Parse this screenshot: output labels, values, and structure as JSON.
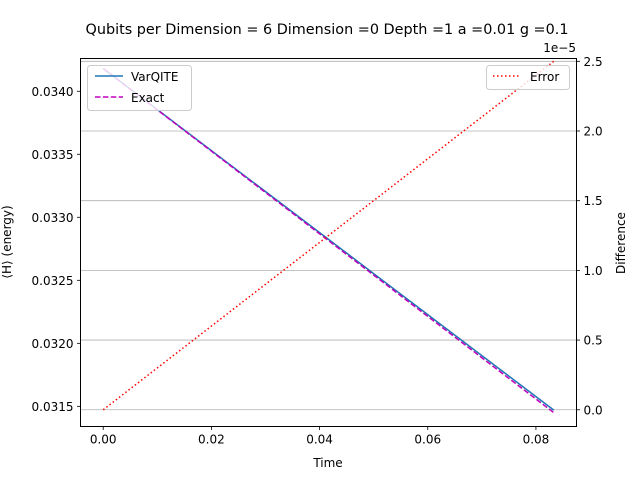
{
  "chart_data": {
    "type": "line",
    "title": "Qubits per Dimension = 6 Dimension =0 Depth =1 a =0.01 g =0.1",
    "xlabel": "Time",
    "ylabel_left": "⟨H⟩ (energy)",
    "ylabel_right": "Difference",
    "right_axis_offset_label": "1e−5",
    "xlim": [
      -0.0042,
      0.0875
    ],
    "ylim_left": [
      0.03134,
      0.03426
    ],
    "ylim_right": [
      -0.12,
      2.52
    ],
    "x_ticks": [
      0.0,
      0.02,
      0.04,
      0.06,
      0.08
    ],
    "x_tick_labels": [
      "0.00",
      "0.02",
      "0.04",
      "0.06",
      "0.08"
    ],
    "left_ticks": [
      0.0315,
      0.032,
      0.0325,
      0.033,
      0.0335,
      0.034
    ],
    "left_tick_labels": [
      "0.0315",
      "0.0320",
      "0.0325",
      "0.0330",
      "0.0335",
      "0.0340"
    ],
    "right_ticks": [
      0.0,
      0.5,
      1.0,
      1.5,
      2.0,
      2.5
    ],
    "right_tick_labels": [
      "0.0",
      "0.5",
      "1.0",
      "1.5",
      "2.0",
      "2.5"
    ],
    "grid": "horizontal lines at right-axis ticks",
    "legend_left_placement": "upper-left",
    "legend_right_placement": "upper-right",
    "series": [
      {
        "name": "VarQITE",
        "axis": "left",
        "color": "#1f77b4",
        "style": "solid",
        "x": [
          0.0,
          0.0833
        ],
        "y": [
          0.03418,
          0.03147
        ]
      },
      {
        "name": "Exact",
        "axis": "left",
        "color": "#bf00bf",
        "style": "dashed",
        "x": [
          0.0,
          0.0833
        ],
        "y": [
          0.03418,
          0.03145
        ]
      },
      {
        "name": "Error",
        "axis": "right",
        "color": "#ff0000",
        "style": "dotted",
        "x": [
          0.0,
          0.0833
        ],
        "y": [
          0.0,
          2.5
        ]
      }
    ]
  }
}
